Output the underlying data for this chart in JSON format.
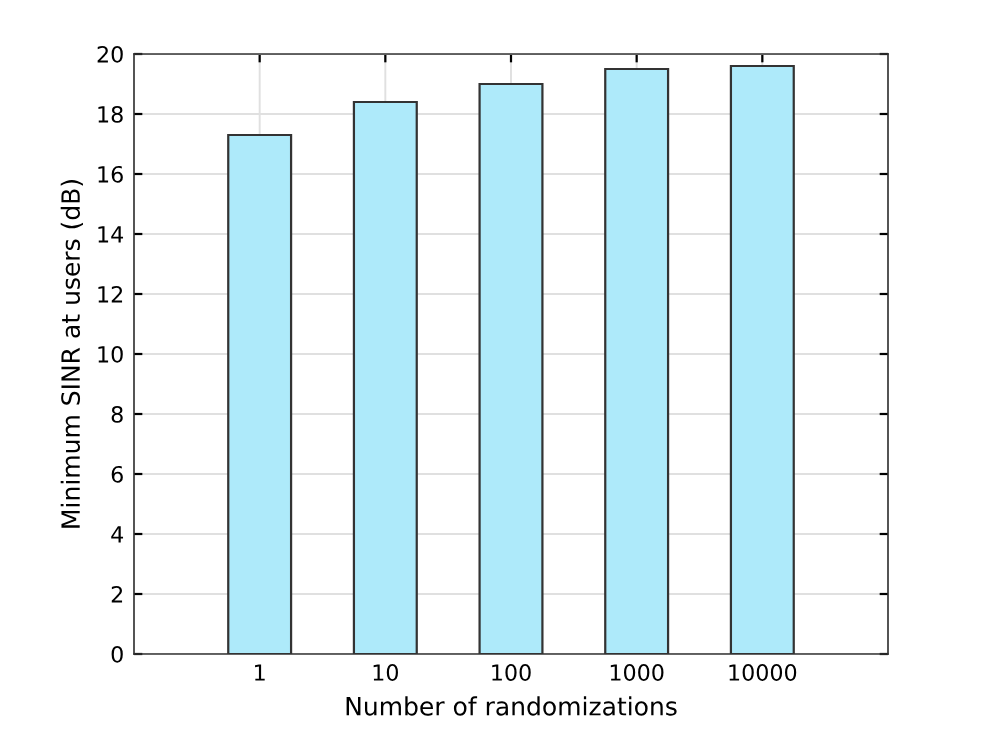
{
  "chart_data": {
    "type": "bar",
    "xlabel": "Number of randomizations",
    "ylabel": "Minimum SINR at users (dB)",
    "categories": [
      "1",
      "10",
      "100",
      "1000",
      "10000"
    ],
    "values": [
      17.3,
      18.4,
      19.0,
      19.5,
      19.6
    ],
    "color": "#aeeafa",
    "ylim": [
      0,
      20
    ],
    "yticks": [
      0,
      2,
      4,
      6,
      8,
      10,
      12,
      14,
      16,
      18,
      20
    ],
    "grid": true
  }
}
